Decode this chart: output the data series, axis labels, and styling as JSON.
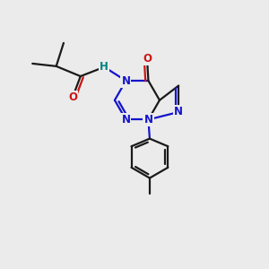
{
  "bg_color": "#ebebeb",
  "bond_color": "#1a1a1a",
  "n_color": "#1414cc",
  "o_color": "#cc1414",
  "h_color": "#008080",
  "line_width": 1.6,
  "dbo": 0.12,
  "xlim": [
    0,
    10
  ],
  "ylim": [
    0,
    10
  ]
}
